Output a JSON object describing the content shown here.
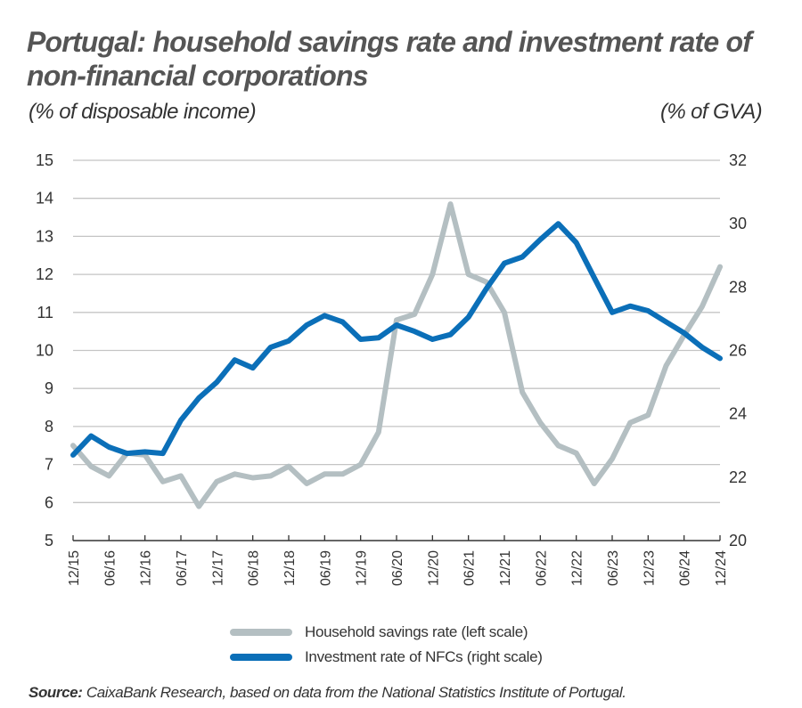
{
  "header": {
    "title": "Portugal: household savings rate and investment rate of non-financial corporations",
    "left_unit": "(% of disposable income)",
    "right_unit": "(% of GVA)"
  },
  "legend": {
    "items": [
      {
        "label": "Household savings rate (left scale)",
        "color": "#b4bfc2"
      },
      {
        "label": "Investment rate of NFCs (right scale)",
        "color": "#0b6fb8"
      }
    ]
  },
  "source": {
    "label": "Source:",
    "text": " CaixaBank Research, based on data from the National Statistics Institute of Portugal."
  },
  "chart_data": {
    "type": "line",
    "title": "Portugal: household savings rate and investment rate of non-financial corporations",
    "ylabel_left": "(% of disposable income)",
    "ylabel_right": "(% of GVA)",
    "ylim_left": [
      5,
      15
    ],
    "ylim_right": [
      20,
      32
    ],
    "yticks_left": [
      5,
      6,
      7,
      8,
      9,
      10,
      11,
      12,
      13,
      14,
      15
    ],
    "yticks_right": [
      20,
      22,
      24,
      26,
      28,
      30,
      32
    ],
    "xtick_labels": [
      "12/15",
      "06/16",
      "12/16",
      "06/17",
      "12/17",
      "06/18",
      "12/18",
      "06/19",
      "12/19",
      "06/20",
      "12/20",
      "06/21",
      "12/21",
      "06/22",
      "12/22",
      "06/23",
      "12/23",
      "06/24",
      "12/24"
    ],
    "grid": true,
    "legend_position": "bottom",
    "x": [
      "12/15",
      "03/16",
      "06/16",
      "09/16",
      "12/16",
      "03/17",
      "06/17",
      "09/17",
      "12/17",
      "03/18",
      "06/18",
      "09/18",
      "12/18",
      "03/19",
      "06/19",
      "09/19",
      "12/19",
      "03/20",
      "06/20",
      "09/20",
      "12/20",
      "03/21",
      "06/21",
      "09/21",
      "12/21",
      "03/22",
      "06/22",
      "09/22",
      "12/22",
      "03/23",
      "06/23",
      "09/23",
      "12/23",
      "03/24",
      "06/24",
      "09/24",
      "12/24"
    ],
    "series": [
      {
        "name": "Household savings rate (left scale)",
        "axis": "left",
        "color": "#b4bfc2",
        "values": [
          7.5,
          6.95,
          6.7,
          7.3,
          7.25,
          6.55,
          6.7,
          5.9,
          6.55,
          6.75,
          6.65,
          6.7,
          6.95,
          6.5,
          6.75,
          6.75,
          7.0,
          7.85,
          10.8,
          10.95,
          12.0,
          13.85,
          12.0,
          11.8,
          11.0,
          8.9,
          8.1,
          7.5,
          7.3,
          6.5,
          7.15,
          8.1,
          8.3,
          9.6,
          10.4,
          11.15,
          12.2
        ]
      },
      {
        "name": "Investment rate of NFCs (right scale)",
        "axis": "right",
        "color": "#0b6fb8",
        "values": [
          22.7,
          23.3,
          22.95,
          22.75,
          22.8,
          22.75,
          23.8,
          24.5,
          25.0,
          25.7,
          25.45,
          26.1,
          26.3,
          26.8,
          27.1,
          26.9,
          26.35,
          26.4,
          26.8,
          26.6,
          26.35,
          26.5,
          27.05,
          27.95,
          28.75,
          28.95,
          29.5,
          30.0,
          29.4,
          28.3,
          27.2,
          27.4,
          27.25,
          26.9,
          26.55,
          26.1,
          25.75
        ]
      }
    ]
  }
}
